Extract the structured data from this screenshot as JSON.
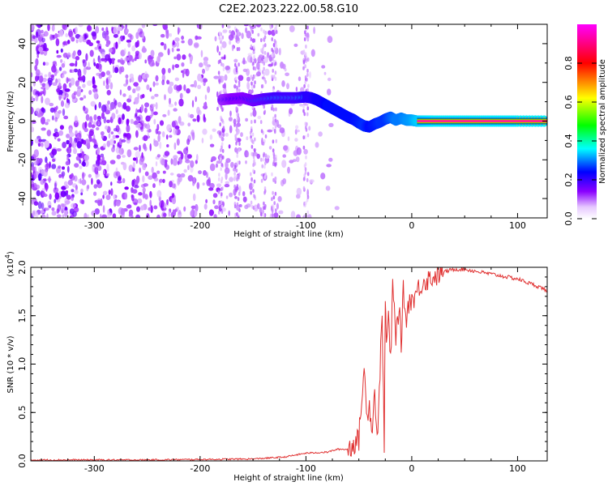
{
  "figure_title": "C2E2.2023.222.00.58.G10",
  "colors": {
    "spectrogram_noise": "#7a1fff",
    "snr_line": "#e03030",
    "colormap": [
      "#ffffff",
      "#8a00ff",
      "#0000ff",
      "#00ffff",
      "#00ff00",
      "#ffff00",
      "#ff0000",
      "#ff00ff"
    ]
  },
  "chart_data": [
    {
      "type": "heatmap",
      "title": "",
      "xlabel": "Height of straight line (km)",
      "ylabel": "Frequency (Hz)",
      "xlim": [
        -360,
        128
      ],
      "ylim": [
        -50,
        50
      ],
      "x_ticks": [
        -300,
        -200,
        -100,
        0,
        100
      ],
      "x_tick_labels": [
        "-300",
        "-200",
        "-100",
        "0",
        "100"
      ],
      "y_ticks": [
        -40,
        -20,
        0,
        20,
        40
      ],
      "y_tick_labels": [
        "-40",
        "-20",
        "0",
        "20",
        "40"
      ],
      "colorbar": {
        "label": "Normalized spectral amplitude",
        "range": [
          0.0,
          1.0
        ],
        "ticks": [
          0.0,
          0.2,
          0.4,
          0.6,
          0.8
        ],
        "tick_labels": [
          "0.0",
          "0.2",
          "0.4",
          "0.6",
          "0.8"
        ]
      },
      "noise_region_x": [
        -360,
        -100
      ],
      "signal_trace": {
        "x": [
          -180,
          -170,
          -160,
          -150,
          -140,
          -130,
          -120,
          -110,
          -100,
          -95,
          -90,
          -85,
          -80,
          -75,
          -70,
          -65,
          -60,
          -55,
          -50,
          -45,
          -40,
          -35,
          -30,
          -25,
          -20,
          -15,
          -10,
          -5,
          0,
          5,
          10,
          20,
          40,
          60,
          80,
          100,
          128
        ],
        "y": [
          11,
          11.5,
          12,
          10.5,
          11.5,
          12,
          12,
          12,
          12.5,
          12,
          11,
          9.5,
          8,
          6.5,
          5,
          3.5,
          2,
          0.8,
          -1,
          -2.5,
          -3,
          -1.5,
          -0.5,
          1,
          2,
          0.5,
          1.5,
          0.5,
          0.5,
          0,
          0,
          0,
          0,
          0,
          0,
          0,
          0
        ],
        "amplitude": [
          0.35,
          0.4,
          0.4,
          0.45,
          0.5,
          0.55,
          0.55,
          0.55,
          0.6,
          0.6,
          0.65,
          0.65,
          0.7,
          0.7,
          0.7,
          0.7,
          0.7,
          0.7,
          0.72,
          0.75,
          0.7,
          0.72,
          0.75,
          0.75,
          0.8,
          0.85,
          0.85,
          0.88,
          0.9,
          0.95,
          0.98,
          1.0,
          1.0,
          1.0,
          1.0,
          1.0,
          1.0
        ]
      }
    },
    {
      "type": "line",
      "title": "",
      "xlabel": "Height of straight line (km)",
      "ylabel": "SNR (10 * v/v)",
      "y_multiplier_label": "(x10",
      "y_multiplier_exponent": "4",
      "y_multiplier_close": ")",
      "xlim": [
        -360,
        128
      ],
      "ylim": [
        0,
        2.0
      ],
      "x_ticks": [
        -300,
        -200,
        -100,
        0,
        100
      ],
      "x_tick_labels": [
        "-300",
        "-200",
        "-100",
        "0",
        "100"
      ],
      "y_ticks": [
        0,
        0.5,
        1.0,
        1.5,
        2.0
      ],
      "y_tick_labels": [
        "0.0",
        "0.5",
        "1.0",
        "1.5",
        "2.0"
      ],
      "series": [
        {
          "x": [
            -360,
            -300,
            -250,
            -200,
            -150,
            -120,
            -100,
            -80,
            -70,
            -60,
            -55,
            -50,
            -48,
            -45,
            -42,
            -40,
            -38,
            -35,
            -32,
            -30,
            -28,
            -26,
            -25,
            -24,
            -22,
            -20,
            -18,
            -15,
            -12,
            -10,
            -8,
            -5,
            -2,
            0,
            5,
            10,
            20,
            30,
            40,
            50,
            60,
            70,
            80,
            90,
            100,
            110,
            120,
            128
          ],
          "y": [
            0.01,
            0.01,
            0.01,
            0.015,
            0.02,
            0.04,
            0.08,
            0.09,
            0.12,
            0.12,
            0.18,
            0.22,
            0.55,
            0.9,
            0.5,
            0.6,
            0.3,
            0.7,
            0.2,
            0.95,
            1.6,
            0.1,
            1.7,
            1.2,
            1.5,
            1.0,
            1.8,
            1.3,
            1.6,
            1.2,
            1.75,
            1.45,
            1.7,
            1.65,
            1.75,
            1.85,
            1.9,
            1.95,
            1.98,
            1.98,
            1.96,
            1.94,
            1.92,
            1.9,
            1.88,
            1.84,
            1.8,
            1.76
          ]
        }
      ]
    }
  ]
}
